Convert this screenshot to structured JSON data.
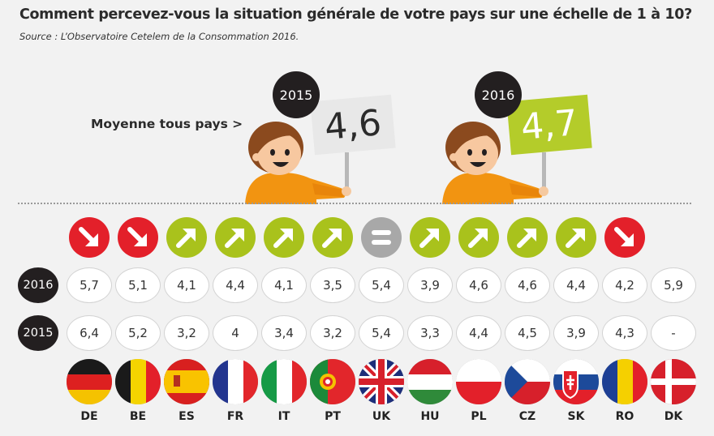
{
  "title": "Comment percevez-vous la situation générale de votre pays sur une échelle de 1 à 10?",
  "source": "Source : L’Observatoire Cetelem de la Consommation 2016.",
  "average": {
    "label": "Moyenne tous pays >",
    "year_2015": "2015",
    "value_2015": "4,6",
    "year_2016": "2016",
    "value_2016": "4,7"
  },
  "row_labels": {
    "y2016": "2016",
    "y2015": "2015"
  },
  "colors": {
    "down": "#e3202a",
    "up": "#a9c21c",
    "equal": "#a8a8a8",
    "dark": "#231f20",
    "sign_2016": "#b4cc2a",
    "sign_2015": "#e8e8e8"
  },
  "chart_data": {
    "type": "table",
    "title": "Comment percevez-vous la situation générale de votre pays sur une échelle de 1 à 10?",
    "categories": [
      "DE",
      "BE",
      "ES",
      "FR",
      "IT",
      "PT",
      "UK",
      "HU",
      "PL",
      "CZ",
      "SK",
      "RO",
      "DK"
    ],
    "trend": [
      "down",
      "down",
      "up",
      "up",
      "up",
      "up",
      "equal",
      "up",
      "up",
      "up",
      "up",
      "down",
      ""
    ],
    "series": [
      {
        "name": "2016",
        "values": [
          "5,7",
          "5,1",
          "4,1",
          "4,4",
          "4,1",
          "3,5",
          "5,4",
          "3,9",
          "4,6",
          "4,6",
          "4,4",
          "4,2",
          "5,9"
        ]
      },
      {
        "name": "2015",
        "values": [
          "6,4",
          "5,2",
          "3,2",
          "4",
          "3,4",
          "3,2",
          "5,4",
          "3,3",
          "4,4",
          "4,5",
          "3,9",
          "4,3",
          "-"
        ]
      }
    ]
  }
}
